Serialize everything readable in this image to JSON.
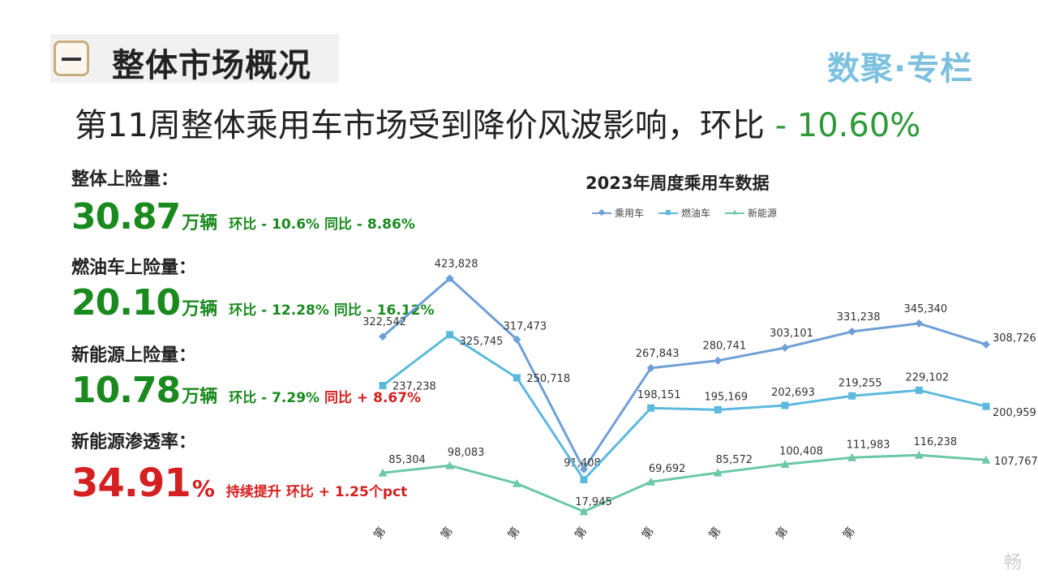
{
  "header": {
    "section_mark": "一",
    "section_title": "整体市场概况",
    "brand": "数聚·专栏"
  },
  "headline": {
    "text": "第11周整体乘用车市场受到降价风波影响，环比",
    "highlight": " - 10.60%"
  },
  "metrics": [
    {
      "label": "整体上险量：",
      "value": "30.87",
      "unit": "万辆",
      "notes": [
        {
          "text": "环比 - 10.6%  同比 - 8.86%",
          "tone": "green"
        }
      ]
    },
    {
      "label": "燃油车上险量：",
      "value": "20.10",
      "unit": "万辆",
      "notes": [
        {
          "text": "环比 - 12.28%  同比 - 16.12%",
          "tone": "green"
        }
      ]
    },
    {
      "label": "新能源上险量：",
      "value": "10.78",
      "unit": "万辆",
      "notes": [
        {
          "text": "环比 - 7.29% ",
          "tone": "green"
        },
        {
          "text": "同比 + 8.67%",
          "tone": "red"
        }
      ]
    },
    {
      "label": "新能源渗透率：",
      "value": "34.91",
      "unit": "%",
      "notes": [
        {
          "text": "持续提升 ",
          "tone": "red"
        },
        {
          "text": "环比 + 1.25个pct",
          "tone": "red"
        }
      ]
    }
  ],
  "colors": {
    "passenger": "#6f9fd6",
    "fuel": "#5cb9de",
    "nev": "#6cc8a5",
    "positive_green": "#1a8a1f",
    "negative_red": "#d42020"
  },
  "chart_data": {
    "type": "line",
    "title": "2023年周度乘用车数据",
    "x_tick_label": "第",
    "legend_placement": "top-center",
    "series": [
      {
        "name": "乘用车",
        "color": "#6f9fd6",
        "marker": "diamond",
        "values": [
          322542,
          423828,
          317473,
          91408,
          267843,
          280741,
          303101,
          331238,
          345340,
          308726
        ],
        "labels": [
          "322,542",
          "423,828",
          "317,473",
          "91,408",
          "267,843",
          "280,741",
          "303,101",
          "331,238",
          "345,340",
          "308,726"
        ]
      },
      {
        "name": "燃油车",
        "color": "#5cb9de",
        "marker": "square",
        "values": [
          237238,
          325745,
          250718,
          73463,
          198151,
          195169,
          202693,
          219255,
          229102,
          200959
        ],
        "labels": [
          "237,238",
          "325,745",
          "250,718",
          "",
          "198,151",
          "195,169",
          "202,693",
          "219,255",
          "229,102",
          "200,959"
        ]
      },
      {
        "name": "新能源",
        "color": "#6cc8a5",
        "marker": "triangle",
        "values": [
          85304,
          98083,
          66755,
          17945,
          69692,
          85572,
          100408,
          111983,
          116238,
          107767
        ],
        "labels": [
          "85,304",
          "98,083",
          "",
          "17,945",
          "69,692",
          "85,572",
          "100,408",
          "111,983",
          "116,238",
          "107,767"
        ]
      }
    ]
  },
  "watermark": "畅"
}
